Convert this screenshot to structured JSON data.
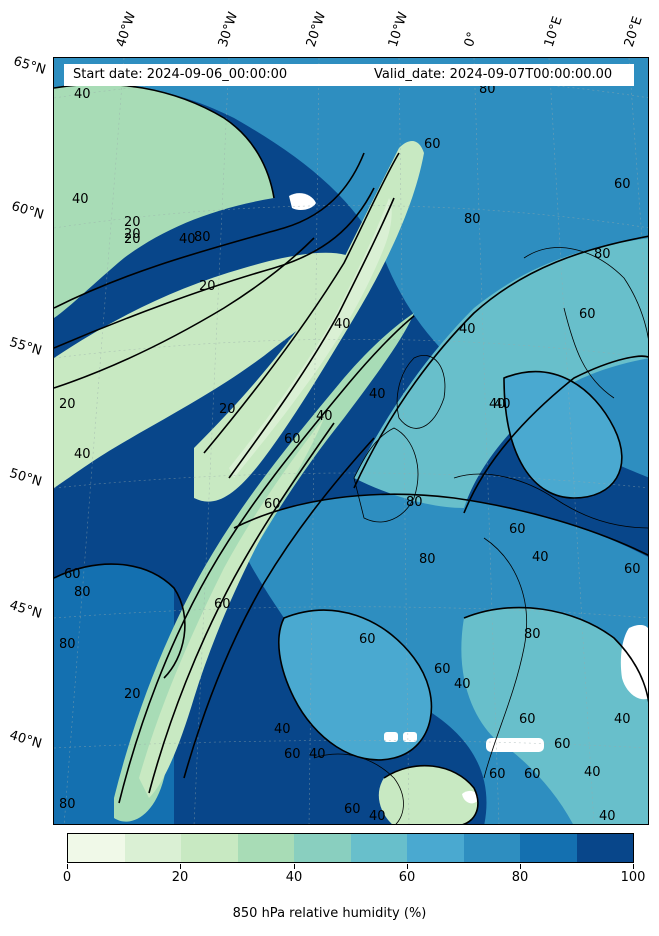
{
  "header": {
    "start_date": "Start date: 2024-09-06_00:00:00",
    "valid_date": "Valid_date: 2024-09-07T00:00:00.00"
  },
  "map": {
    "projection_note": "",
    "lat_labels": [
      "65°N",
      "60°N",
      "55°N",
      "50°N",
      "45°N",
      "40°N"
    ],
    "lon_labels": [
      "40°W",
      "30°W",
      "20°W",
      "10°W",
      "0°",
      "10°E",
      "20°E"
    ],
    "contour_labels": [
      "20",
      "40",
      "60",
      "80",
      "20",
      "40",
      "60",
      "80",
      "40",
      "60",
      "20",
      "40",
      "80",
      "60",
      "40",
      "20",
      "60",
      "40",
      "80",
      "60",
      "40",
      "60",
      "80",
      "40",
      "20",
      "60",
      "40"
    ]
  },
  "colorbar": {
    "title": "850 hPa relative humidity (%)",
    "ticks": [
      "0",
      "20",
      "40",
      "60",
      "80",
      "100"
    ],
    "colors": [
      "#f0f9e8",
      "#daf0d4",
      "#c8e9c2",
      "#a8dcb6",
      "#89cfbf",
      "#68bfcb",
      "#4aa9d0",
      "#2e8ec0",
      "#1470b0",
      "#08468a"
    ]
  }
}
